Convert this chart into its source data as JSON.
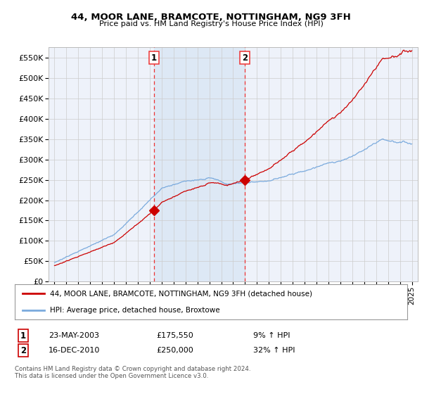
{
  "title": "44, MOOR LANE, BRAMCOTE, NOTTINGHAM, NG9 3FH",
  "subtitle": "Price paid vs. HM Land Registry's House Price Index (HPI)",
  "legend_line1": "44, MOOR LANE, BRAMCOTE, NOTTINGHAM, NG9 3FH (detached house)",
  "legend_line2": "HPI: Average price, detached house, Broxtowe",
  "sale1_date": "23-MAY-2003",
  "sale1_price": "£175,550",
  "sale1_hpi": "9% ↑ HPI",
  "sale2_date": "16-DEC-2010",
  "sale2_price": "£250,000",
  "sale2_hpi": "32% ↑ HPI",
  "footnote": "Contains HM Land Registry data © Crown copyright and database right 2024.\nThis data is licensed under the Open Government Licence v3.0.",
  "sale1_year": 2003.37,
  "sale1_value": 175550,
  "sale2_year": 2010.96,
  "sale2_value": 250000,
  "property_color": "#cc0000",
  "hpi_color": "#7aaadd",
  "vline_color": "#ee3333",
  "shade_color": "#dde8f5",
  "background_color": "#ffffff",
  "plot_bg_color": "#eef2fa",
  "grid_color": "#cccccc",
  "ylim": [
    0,
    575000
  ],
  "xlim_start": 1994.5,
  "xlim_end": 2025.5
}
